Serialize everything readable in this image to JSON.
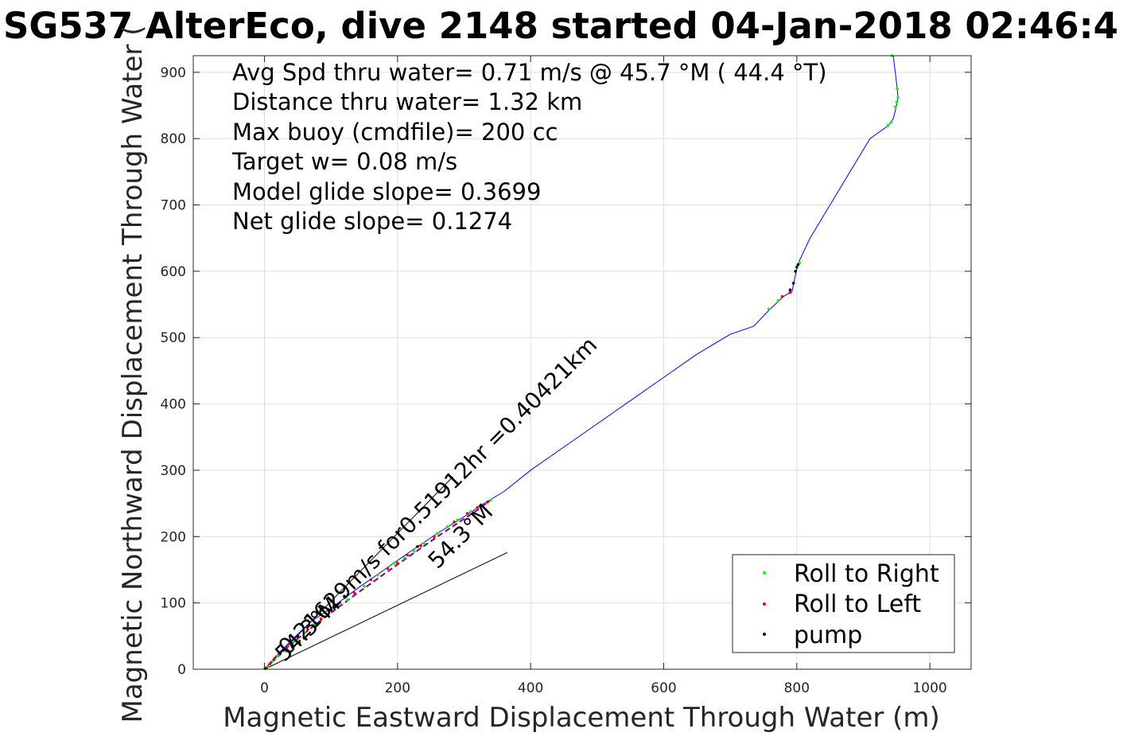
{
  "chart_data": {
    "type": "line",
    "title": "SG537 AlterEco, dive 2148 started 04-Jan-2018 02:46:4",
    "xlabel": "Magnetic Eastward Displacement Through Water (m)",
    "ylabel": "Magnetic Northward Displacement Through Water (",
    "xlim": [
      -107,
      1062
    ],
    "ylim": [
      0,
      925
    ],
    "xticks": [
      "0",
      "200",
      "400",
      "600",
      "800",
      "1000"
    ],
    "xtick_values": [
      0,
      200,
      400,
      600,
      800,
      1000
    ],
    "yticks": [
      "0",
      "100",
      "200",
      "300",
      "400",
      "500",
      "600",
      "700",
      "800",
      "900"
    ],
    "ytick_values": [
      0,
      100,
      200,
      300,
      400,
      500,
      600,
      700,
      800,
      900
    ],
    "grid": true,
    "legend_position": "bottom-right",
    "annotations": [
      "Avg Spd thru water=  0.71 m/s @  45.7 °M ( 44.4 °T)",
      "Distance thru water=  1.32 km",
      "Max buoy (cmdfile)= 200 cc",
      "Target w= 0.08 m/s",
      "Model glide slope= 0.3699",
      "Net glide slope= 0.1274"
    ],
    "track": {
      "color": "#0000ff",
      "x": [
        0,
        10,
        25,
        45,
        70,
        100,
        140,
        180,
        220,
        260,
        300,
        330,
        360,
        400,
        450,
        500,
        550,
        600,
        650,
        700,
        735,
        760,
        780,
        793,
        797,
        802,
        820,
        850,
        880,
        910,
        938,
        945,
        950,
        952,
        951,
        945
      ],
      "y": [
        0,
        12,
        28,
        48,
        72,
        92,
        122,
        150,
        178,
        205,
        230,
        250,
        268,
        300,
        335,
        370,
        405,
        440,
        475,
        505,
        517,
        543,
        562,
        570,
        590,
        612,
        650,
        700,
        750,
        800,
        820,
        830,
        850,
        862,
        875,
        925
      ]
    },
    "series": [
      {
        "name": "Roll to Right",
        "color": "#00ff00",
        "x": [
          5,
          12,
          20,
          30,
          45,
          60,
          75,
          95,
          110,
          125,
          150,
          170,
          195,
          210,
          225,
          240,
          260,
          275,
          290,
          310,
          325,
          340,
          758,
          772,
          800,
          804,
          937,
          942,
          948,
          950,
          952,
          951,
          943
        ],
        "y": [
          4,
          12,
          20,
          28,
          42,
          55,
          68,
          82,
          95,
          105,
          125,
          142,
          160,
          168,
          178,
          190,
          205,
          215,
          225,
          238,
          248,
          255,
          543,
          556,
          607,
          613,
          820,
          825,
          848,
          855,
          862,
          875,
          925
        ]
      },
      {
        "name": "Roll to Left",
        "color": "#ff0000",
        "x": [
          3,
          8,
          15,
          22,
          35,
          50,
          65,
          85,
          100,
          135,
          160,
          185,
          200,
          215,
          235,
          255,
          285,
          305,
          320,
          335,
          778,
          790
        ],
        "y": [
          2,
          8,
          16,
          24,
          35,
          48,
          60,
          76,
          88,
          115,
          135,
          152,
          160,
          172,
          186,
          200,
          222,
          235,
          244,
          252,
          562,
          568
        ]
      },
      {
        "name": "pump",
        "color": "#000000",
        "x": [
          1,
          50,
          120,
          230,
          790,
          795,
          798,
          800,
          802
        ],
        "y": [
          1,
          50,
          110,
          185,
          572,
          582,
          600,
          606,
          610
        ]
      }
    ],
    "guide_lines": [
      {
        "x": [
          0,
          283
        ],
        "y": [
          0,
          290
        ]
      },
      {
        "x": [
          0,
          365
        ],
        "y": [
          0,
          176
        ]
      }
    ],
    "dashed_line": {
      "color": "#800080",
      "x": [
        0,
        15,
        40,
        80,
        140,
        200,
        260,
        320,
        340
      ],
      "y": [
        0,
        14,
        38,
        70,
        115,
        158,
        200,
        240,
        255
      ]
    },
    "rotated_labels": [
      {
        "text": "0.21629m/s for0.51912hr =0.40421km",
        "x": 35,
        "y": 20
      },
      {
        "text": "54.3°M",
        "x": 30,
        "y": 10
      },
      {
        "text": "54.3°M",
        "x": 260,
        "y": 150
      }
    ]
  }
}
